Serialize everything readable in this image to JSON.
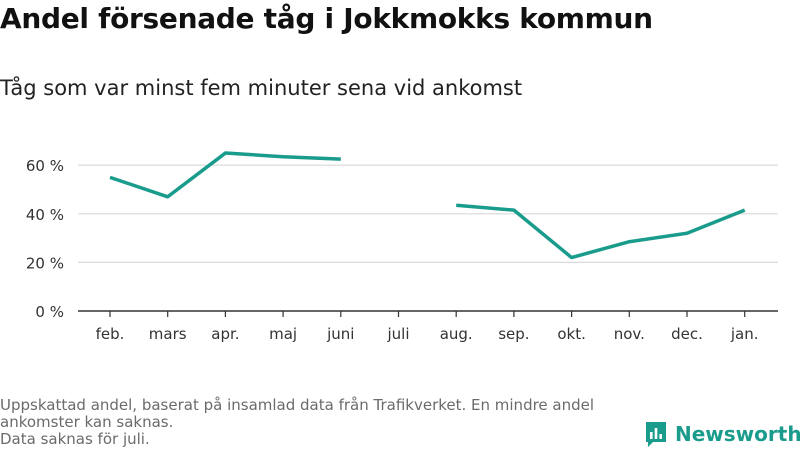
{
  "title": "Andel försenade tåg i Jokkmokks kommun",
  "subtitle": "Tåg som var minst fem minuter sena vid ankomst",
  "footnote": {
    "line1": "Uppskattad andel, baserat på insamlad data från Trafikverket. En mindre andel ankomster kan saknas.",
    "line2": "Data saknas för juli."
  },
  "brand": {
    "name": "Newsworthy",
    "icon": "newsworthy-logo-icon"
  },
  "colors": {
    "line": "#1a9c8c",
    "grid": "#d9d9d9",
    "axis": "#333333",
    "tick_text": "#333333"
  },
  "chart_data": {
    "type": "line",
    "categories": [
      "feb.",
      "mars",
      "apr.",
      "maj",
      "juni",
      "juli",
      "aug.",
      "sep.",
      "okt.",
      "nov.",
      "dec.",
      "jan."
    ],
    "series": [
      {
        "values": [
          55,
          47,
          65,
          63.5,
          62.5,
          null,
          43.5,
          41.5,
          22,
          28.5,
          32,
          41.5
        ]
      }
    ],
    "yticks": [
      0,
      20,
      40,
      60
    ],
    "ytick_labels": [
      "0 %",
      "20 %",
      "40 %",
      "60 %"
    ],
    "ylim": [
      0,
      66
    ],
    "grid": true
  }
}
